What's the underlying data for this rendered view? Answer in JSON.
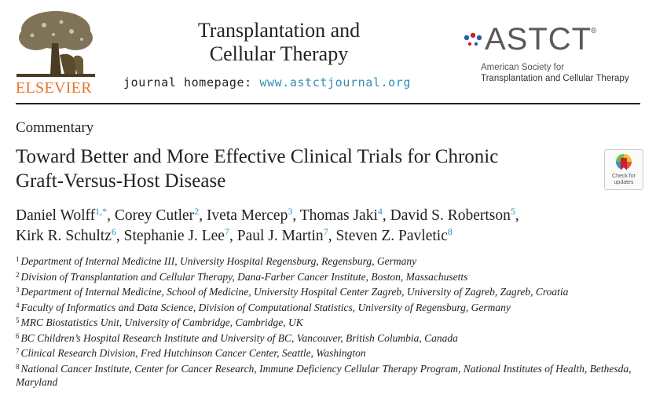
{
  "header": {
    "publisher": "ELSEVIER",
    "journal_title_line1": "Transplantation and",
    "journal_title_line2": "Cellular Therapy",
    "homepage_label": "journal homepage:",
    "homepage_url": "www.astctjournal.org",
    "society_logo": "ASTCT",
    "society_reg": "®",
    "society_line1": "American Society for",
    "society_line2": "Transplantation and Cellular Therapy",
    "brand_colors": {
      "elsevier": "#e8742a",
      "url": "#2f8fb7",
      "astct_red": "#c8202e",
      "astct_blue": "#2a5da8"
    }
  },
  "article": {
    "type": "Commentary",
    "title_line1": "Toward Better and More Effective Clinical Trials for Chronic",
    "title_line2": "Graft-Versus-Host Disease",
    "check_updates_line1": "Check for",
    "check_updates_line2": "updates",
    "check_updates_icon": "check-for-updates-icon"
  },
  "authors": [
    {
      "name": "Daniel Wolff",
      "sup": "1,*",
      "sep": ", "
    },
    {
      "name": "Corey Cutler",
      "sup": "2",
      "sep": ", "
    },
    {
      "name": "Iveta Mercep",
      "sup": "3",
      "sep": ", "
    },
    {
      "name": "Thomas Jaki",
      "sup": "4",
      "sep": ", "
    },
    {
      "name": "David S. Robertson",
      "sup": "5",
      "sep": ","
    },
    {
      "name": "Kirk R. Schultz",
      "sup": "6",
      "sep": ", "
    },
    {
      "name": "Stephanie J. Lee",
      "sup": "7",
      "sep": ", "
    },
    {
      "name": "Paul J. Martin",
      "sup": "7",
      "sep": ", "
    },
    {
      "name": "Steven Z. Pavletic",
      "sup": "8",
      "sep": ""
    }
  ],
  "affiliations": [
    {
      "num": "1",
      "text": "Department of Internal Medicine III, University Hospital Regensburg, Regensburg, Germany"
    },
    {
      "num": "2",
      "text": "Division of Transplantation and Cellular Therapy, Dana-Farber Cancer Institute, Boston, Massachusetts"
    },
    {
      "num": "3",
      "text": "Department of Internal Medicine, School of Medicine, University Hospital Center Zagreb, University of Zagreb, Zagreb, Croatia"
    },
    {
      "num": "4",
      "text": "Faculty of Informatics and Data Science, Division of Computational Statistics, University of Regensburg, Germany"
    },
    {
      "num": "5",
      "text": "MRC Biostatistics Unit, University of Cambridge, Cambridge, UK"
    },
    {
      "num": "6",
      "text": "BC Children’s Hospital Research Institute and University of BC, Vancouver, British Columbia, Canada"
    },
    {
      "num": "7",
      "text": "Clinical Research Division, Fred Hutchinson Cancer Center, Seattle, Washington"
    },
    {
      "num": "8",
      "text": "National Cancer Institute, Center for Cancer Research, Immune Deficiency Cellular Therapy Program, National Institutes of Health, Bethesda, Maryland"
    }
  ]
}
